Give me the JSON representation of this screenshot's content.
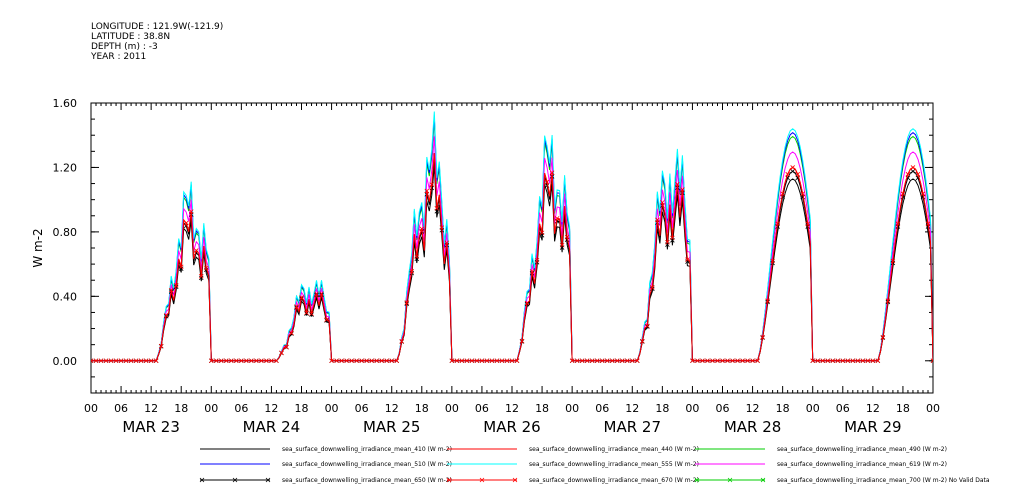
{
  "header": {
    "lines": [
      "LONGITUDE : 121.9W(-121.9)",
      "LATITUDE : 38.8N",
      "DEPTH (m) : -3",
      "YEAR : 2011"
    ]
  },
  "chart_data": {
    "type": "line",
    "title": "",
    "ylabel": "W m-2",
    "ylim": [
      -0.2,
      1.6
    ],
    "yticks": [
      "0.00",
      "0.40",
      "0.80",
      "1.20",
      "1.60"
    ],
    "ytick_values": [
      0,
      0.4,
      0.8,
      1.2,
      1.6
    ],
    "xlim_hours": [
      0,
      168
    ],
    "hour_tick_labels": [
      "00",
      "06",
      "12",
      "18",
      "00",
      "06",
      "12",
      "18",
      "00",
      "06",
      "12",
      "18",
      "00",
      "06",
      "12",
      "18",
      "00",
      "06",
      "12",
      "18",
      "00",
      "06",
      "12",
      "18",
      "00",
      "06",
      "12",
      "18",
      "00"
    ],
    "day_labels": [
      "MAR 23",
      "MAR 24",
      "MAR 25",
      "MAR 26",
      "MAR 27",
      "MAR 28",
      "MAR 29"
    ],
    "day_peaks": [
      0.92,
      0.45,
      1.2,
      1.2,
      1.15,
      1.2,
      1.2
    ],
    "series": [
      {
        "name": "sea_surface_downwelling_irradiance_mean_410 (W m-2)",
        "color": "#000000",
        "scale": 0.94,
        "marker": false
      },
      {
        "name": "sea_surface_downwelling_irradiance_mean_440 (W m-2)",
        "color": "#ff0000",
        "scale": 1.0,
        "marker": false
      },
      {
        "name": "sea_surface_downwelling_irradiance_mean_490 (W m-2)",
        "color": "#00cc00",
        "scale": 1.16,
        "marker": false
      },
      {
        "name": "sea_surface_downwelling_irradiance_mean_510 (W m-2)",
        "color": "#0000ff",
        "scale": 1.18,
        "marker": false
      },
      {
        "name": "sea_surface_downwelling_irradiance_mean_555 (W m-2)",
        "color": "#00ffff",
        "scale": 1.2,
        "marker": false
      },
      {
        "name": "sea_surface_downwelling_irradiance_mean_619 (W m-2)",
        "color": "#ff00ff",
        "scale": 1.08,
        "marker": false
      },
      {
        "name": "sea_surface_downwelling_irradiance_mean_650 (W m-2)",
        "color": "#000000",
        "scale": 0.98,
        "marker": true
      },
      {
        "name": "sea_surface_downwelling_irradiance_mean_670 (W m-2)",
        "color": "#ff0000",
        "scale": 1.0,
        "marker": true
      },
      {
        "name": "sea_surface_downwelling_irradiance_mean_700 (W m-2) No Valid Data",
        "color": "#00cc00",
        "scale": 0,
        "marker": true
      }
    ],
    "grid": false,
    "legend_placement": "bottom"
  }
}
